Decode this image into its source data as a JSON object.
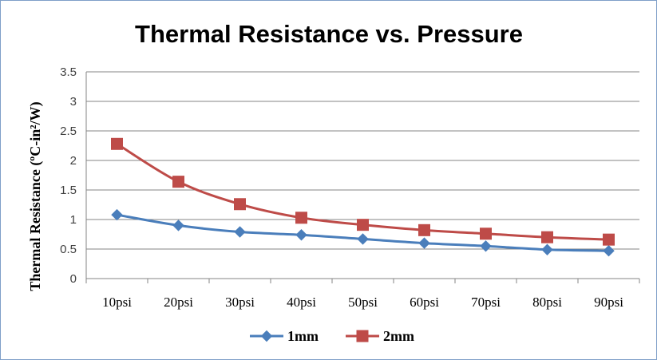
{
  "chart_data": {
    "type": "line",
    "title": "Thermal Resistance vs. Pressure",
    "xlabel": "",
    "ylabel": "Thermal Resistance (ºC-in²/W)",
    "categories": [
      "10psi",
      "20psi",
      "30psi",
      "40psi",
      "50psi",
      "60psi",
      "70psi",
      "80psi",
      "90psi"
    ],
    "y_ticks": [
      "0",
      "0.5",
      "1",
      "1.5",
      "2",
      "2.5",
      "3",
      "3.5"
    ],
    "ylim": [
      0,
      3.5
    ],
    "grid": true,
    "legend_position": "bottom",
    "series": [
      {
        "name": "1mm",
        "color": "#4a7ebb",
        "marker": "diamond",
        "values": [
          1.08,
          0.9,
          0.79,
          0.74,
          0.67,
          0.6,
          0.55,
          0.49,
          0.47
        ]
      },
      {
        "name": "2mm",
        "color": "#be4b48",
        "marker": "square",
        "values": [
          2.28,
          1.64,
          1.26,
          1.03,
          0.91,
          0.82,
          0.76,
          0.7,
          0.66
        ]
      }
    ]
  }
}
